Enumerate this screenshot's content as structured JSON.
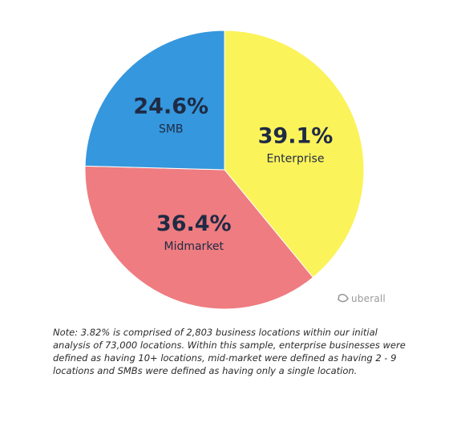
{
  "chart_data": {
    "type": "pie",
    "title": "",
    "categories": [
      "Enterprise",
      "Midmarket",
      "SMB"
    ],
    "values": [
      39.1,
      36.4,
      24.6
    ],
    "value_labels": [
      "39.1%",
      "36.4%",
      "24.6%"
    ],
    "colors": [
      "#fbf35a",
      "#ee7c80",
      "#3597dd"
    ],
    "start": "12 o'clock",
    "direction": "clockwise",
    "legend": "none",
    "labels_inside": true
  },
  "brand": {
    "name": "uberall",
    "icon": "uberall-logo-icon"
  },
  "note": "Note: 3.82% is comprised of 2,803 business locations within our initial analysis of 73,000 locations. Within this sample, enterprise businesses were defined as having 10+ locations, mid-market were defined as having 2 - 9 locations and SMBs were defined as having only a single location."
}
